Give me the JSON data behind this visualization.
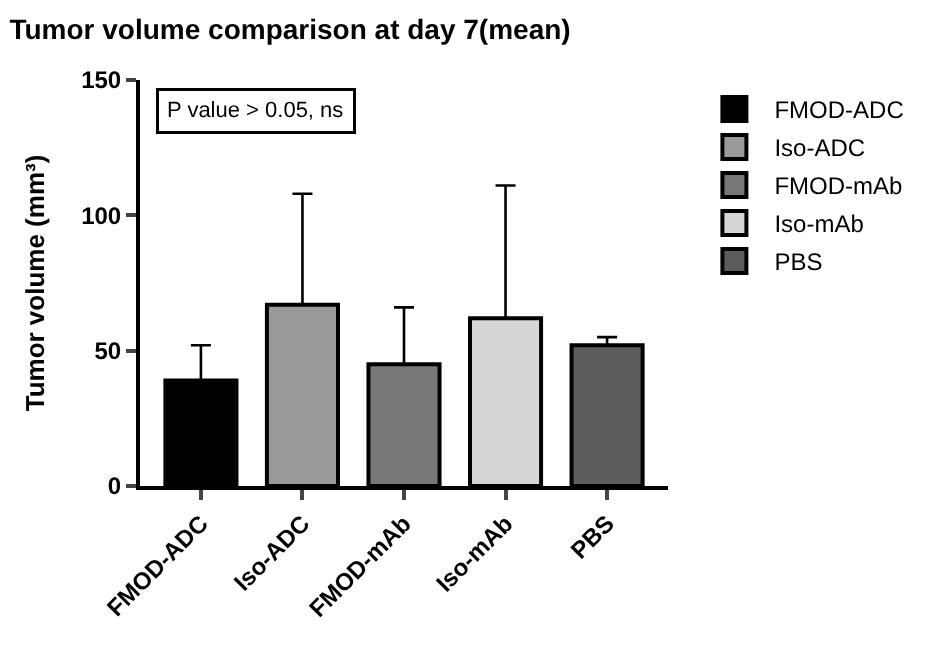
{
  "chart_data": {
    "type": "bar",
    "title": "Tumor volume comparison at day 7(mean)",
    "ylabel": "Tumor volume (mm³)",
    "categories": [
      "FMOD-ADC",
      "Iso-ADC",
      "FMOD-mAb",
      "Iso-mAb",
      "PBS"
    ],
    "series": [
      {
        "name": "FMOD-ADC",
        "color": "#000000",
        "values": [
          39,
          null,
          null,
          null,
          null
        ],
        "errors": [
          [
            39,
            52
          ],
          null,
          null,
          null,
          null
        ]
      },
      {
        "name": "Iso-ADC",
        "color": "#9a9a9a",
        "values": [
          null,
          67,
          null,
          null,
          null
        ],
        "errors": [
          null,
          [
            67,
            108
          ],
          null,
          null,
          null
        ]
      },
      {
        "name": "FMOD-mAb",
        "color": "#777777",
        "values": [
          null,
          null,
          45,
          null,
          null
        ],
        "errors": [
          null,
          null,
          [
            45,
            66
          ],
          null,
          null
        ]
      },
      {
        "name": "Iso-mAb",
        "color": "#d6d6d6",
        "values": [
          null,
          null,
          null,
          62,
          null
        ],
        "errors": [
          null,
          null,
          null,
          [
            62,
            111
          ],
          null
        ]
      },
      {
        "name": "PBS",
        "color": "#5c5c5c",
        "values": [
          null,
          null,
          null,
          null,
          52
        ],
        "errors": [
          null,
          null,
          null,
          null,
          [
            52,
            55
          ]
        ]
      }
    ],
    "ylim": [
      0,
      150
    ],
    "yticks": [
      0,
      50,
      100,
      150
    ],
    "annotations": [
      "P value > 0.05, ns"
    ],
    "legend": "right"
  }
}
